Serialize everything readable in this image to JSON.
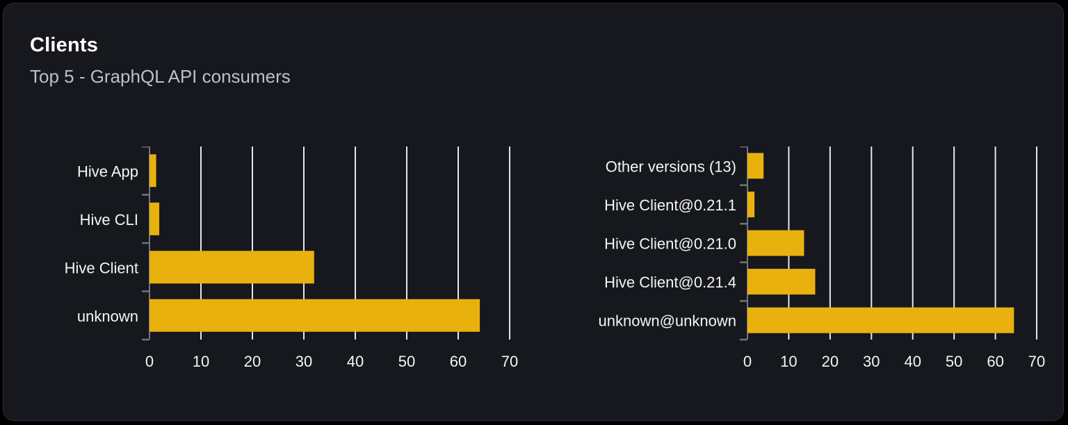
{
  "card": {
    "title": "Clients",
    "subtitle": "Top 5 - GraphQL API consumers"
  },
  "colors": {
    "bar": "#e8b10e",
    "gridline": "#e4e7ef",
    "axis": "#70747d",
    "card_bg": "#16181d",
    "card_border": "#2b2f37",
    "page_bg": "#000000",
    "title": "#ffffff",
    "subtitle": "#bcc0c7",
    "label": "#f4f5f7",
    "tick_label": "#f4f5f7"
  },
  "chart_data": [
    {
      "type": "bar",
      "orientation": "horizontal",
      "categories": [
        "Hive App",
        "Hive CLI",
        "Hive Client",
        "unknown"
      ],
      "values": [
        1.3,
        1.9,
        32,
        64.2
      ],
      "x_ticks": [
        0,
        10,
        20,
        30,
        40,
        50,
        60,
        70
      ],
      "xlim": [
        0,
        70
      ],
      "grid": true,
      "legend": "none"
    },
    {
      "type": "bar",
      "orientation": "horizontal",
      "categories": [
        "Other versions (13)",
        "Hive Client@0.21.1",
        "Hive Client@0.21.0",
        "Hive Client@0.21.4",
        "unknown@unknown"
      ],
      "values": [
        3.9,
        1.7,
        13.7,
        16.4,
        64.5
      ],
      "x_ticks": [
        0,
        10,
        20,
        30,
        40,
        50,
        60,
        70
      ],
      "xlim": [
        0,
        70
      ],
      "grid": true,
      "legend": "none"
    }
  ]
}
